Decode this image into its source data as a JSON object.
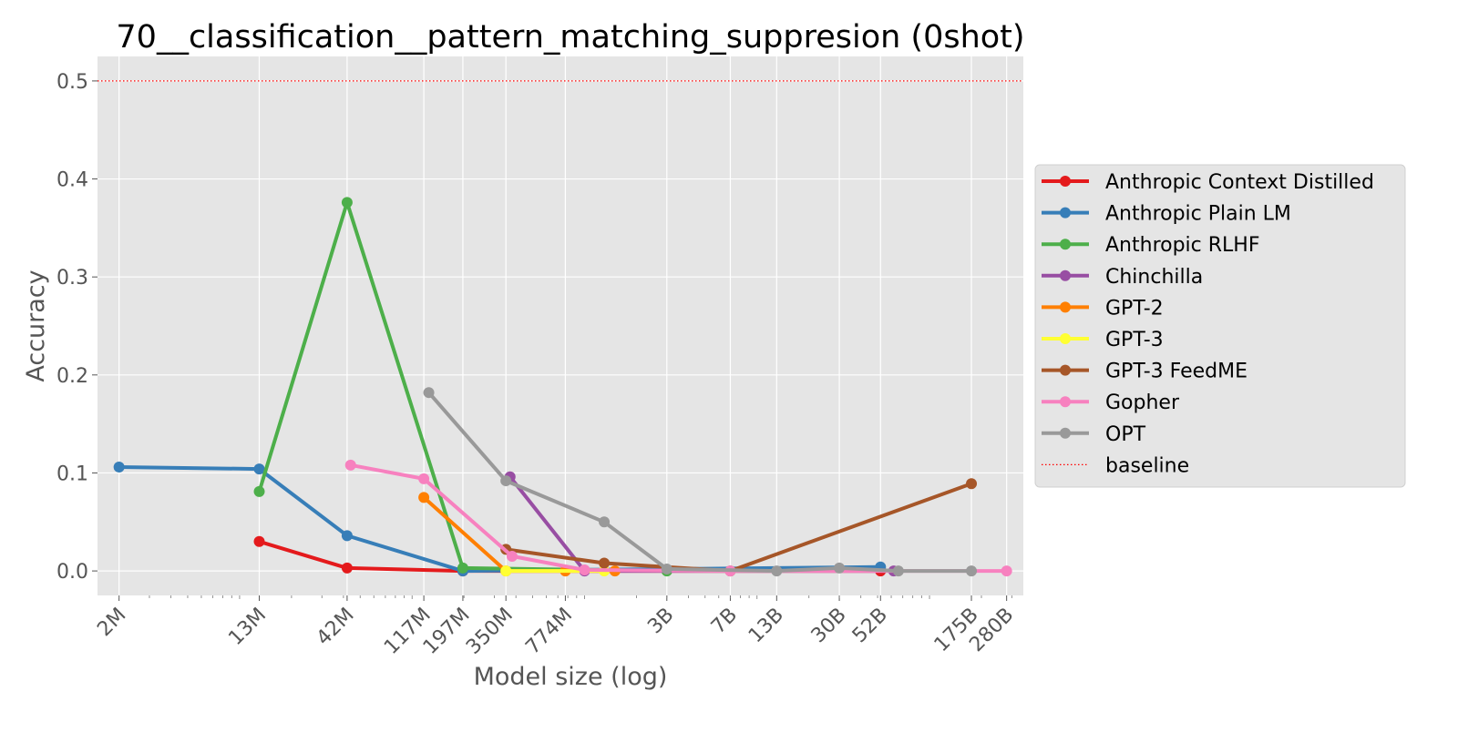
{
  "chart_data": {
    "type": "line",
    "title": "70__classification__pattern_matching_suppresion (0shot)",
    "xlabel": "Model size (log)",
    "ylabel": "Accuracy",
    "x_scale": "log",
    "xlim": [
      1500000,
      350000000000
    ],
    "ylim": [
      -0.025,
      0.525
    ],
    "grid": true,
    "legend_position": "right",
    "y_ticks": [
      {
        "value": 0.0,
        "label": "0.0"
      },
      {
        "value": 0.1,
        "label": "0.1"
      },
      {
        "value": 0.2,
        "label": "0.2"
      },
      {
        "value": 0.3,
        "label": "0.3"
      },
      {
        "value": 0.4,
        "label": "0.4"
      },
      {
        "value": 0.5,
        "label": "0.5"
      }
    ],
    "x_ticks": [
      {
        "value": 2000000,
        "label": "2M"
      },
      {
        "value": 13000000,
        "label": "13M"
      },
      {
        "value": 42000000,
        "label": "42M"
      },
      {
        "value": 117000000,
        "label": "117M"
      },
      {
        "value": 197000000,
        "label": "197M"
      },
      {
        "value": 350000000,
        "label": "350M"
      },
      {
        "value": 774000000,
        "label": "774M"
      },
      {
        "value": 3000000000,
        "label": "3B"
      },
      {
        "value": 7000000000,
        "label": "7B"
      },
      {
        "value": 13000000000,
        "label": "13B"
      },
      {
        "value": 30000000000,
        "label": "30B"
      },
      {
        "value": 52000000000,
        "label": "52B"
      },
      {
        "value": 175000000000,
        "label": "175B"
      },
      {
        "value": 280000000000,
        "label": "280B"
      }
    ],
    "series": [
      {
        "name": "Anthropic Context Distilled",
        "color": "#e41a1c",
        "points": [
          [
            13000000,
            0.03
          ],
          [
            42000000,
            0.003
          ],
          [
            197000000,
            0.0
          ],
          [
            52000000000,
            0.0
          ]
        ]
      },
      {
        "name": "Anthropic Plain LM",
        "color": "#377eb8",
        "points": [
          [
            2000000,
            0.106
          ],
          [
            13000000,
            0.104
          ],
          [
            42000000,
            0.036
          ],
          [
            197000000,
            0.0
          ],
          [
            52000000000,
            0.004
          ]
        ]
      },
      {
        "name": "Anthropic RLHF",
        "color": "#4daf4a",
        "points": [
          [
            13000000,
            0.081
          ],
          [
            42000000,
            0.376
          ],
          [
            197000000,
            0.003
          ],
          [
            3000000000,
            0.0
          ]
        ]
      },
      {
        "name": "Chinchilla",
        "color": "#984ea3",
        "points": [
          [
            370000000,
            0.096
          ],
          [
            1000000000,
            0.0
          ],
          [
            62000000000,
            0.0
          ]
        ]
      },
      {
        "name": "GPT-2",
        "color": "#ff7f00",
        "points": [
          [
            117000000,
            0.075
          ],
          [
            350000000,
            0.0
          ],
          [
            774000000,
            0.0
          ],
          [
            1500000000,
            0.0
          ]
        ]
      },
      {
        "name": "GPT-3",
        "color": "#ffff33",
        "points": [
          [
            350000000,
            0.0
          ],
          [
            1300000000,
            0.0
          ]
        ]
      },
      {
        "name": "GPT-3 FeedME",
        "color": "#a65628",
        "points": [
          [
            350000000,
            0.022
          ],
          [
            1300000000,
            0.008
          ],
          [
            7000000000,
            0.0
          ],
          [
            175000000000,
            0.089
          ]
        ]
      },
      {
        "name": "Gopher",
        "color": "#f781bf",
        "points": [
          [
            44000000,
            0.108
          ],
          [
            117000000,
            0.094
          ],
          [
            380000000,
            0.015
          ],
          [
            1000000000,
            0.001
          ],
          [
            7000000000,
            0.0
          ],
          [
            280000000000,
            0.0
          ]
        ]
      },
      {
        "name": "OPT",
        "color": "#999999",
        "points": [
          [
            125000000,
            0.182
          ],
          [
            350000000,
            0.092
          ],
          [
            1300000000,
            0.05
          ],
          [
            3000000000,
            0.002
          ],
          [
            13000000000,
            0.0
          ],
          [
            30000000000,
            0.003
          ],
          [
            66000000000,
            0.0
          ],
          [
            175000000000,
            0.0
          ]
        ]
      }
    ],
    "baseline": {
      "name": "baseline",
      "value": 0.5,
      "color": "#ff0000"
    }
  }
}
